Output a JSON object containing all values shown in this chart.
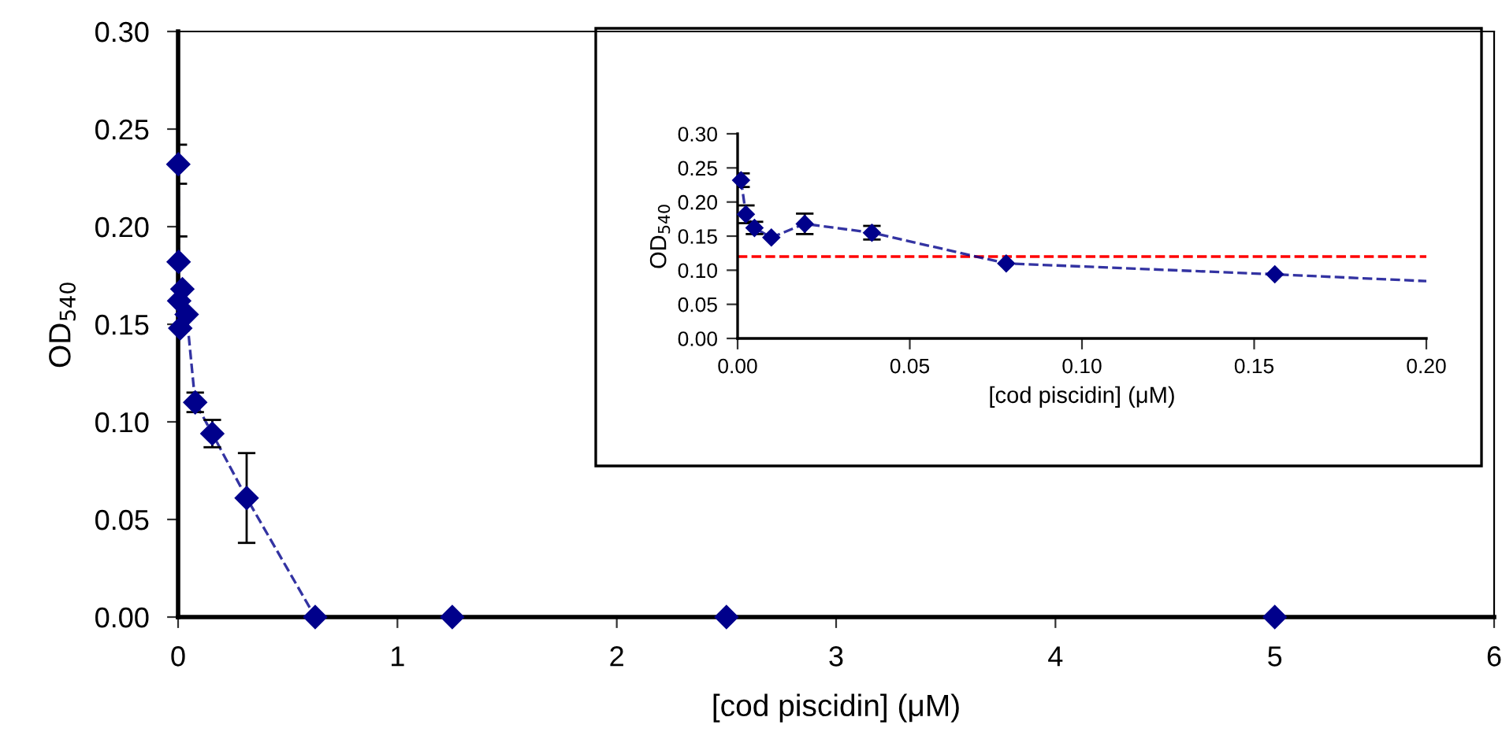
{
  "chart_data": [
    {
      "type": "line",
      "xlabel": "[cod piscidin] (μM)",
      "ylabel": "OD$_{540}$",
      "x": [
        0.001,
        0.0024,
        0.0049,
        0.0098,
        0.0195,
        0.039,
        0.078,
        0.156,
        0.3125,
        0.625,
        1.25,
        2.5,
        5
      ],
      "series": [
        {
          "color": "#00008b",
          "values": [
            0.232,
            0.182,
            0.162,
            0.148,
            0.168,
            0.155,
            0.11,
            0.094,
            0.061,
            0,
            0,
            0,
            0
          ],
          "errors": [
            0.01,
            0.013,
            null,
            null,
            null,
            null,
            0.005,
            0.007,
            0.023,
            null,
            null,
            null,
            null
          ]
        }
      ],
      "marker": "diamond",
      "line_style": "dashed",
      "xlim": [
        0,
        6
      ],
      "xticks": [
        0,
        1,
        2,
        3,
        4,
        5,
        6
      ],
      "ylim": [
        0,
        0.3
      ],
      "yticks": [
        {
          "value": 0,
          "label": "0.00"
        },
        {
          "value": 0.05,
          "label": "0.05"
        },
        {
          "value": 0.1,
          "label": "0.10"
        },
        {
          "value": 0.15,
          "label": "0.15"
        },
        {
          "value": 0.2,
          "label": "0.20"
        },
        {
          "value": 0.25,
          "label": "0.25"
        },
        {
          "value": 0.3,
          "label": "0.30"
        }
      ],
      "grid": false
    },
    {
      "type": "line",
      "xlabel": "[cod piscidin] (μM)",
      "ylabel": "OD$_{540}$",
      "x": [
        0.001,
        0.0024,
        0.0049,
        0.0098,
        0.0195,
        0.039,
        0.078,
        0.156,
        0.2
      ],
      "series": [
        {
          "color": "#00008b",
          "values": [
            0.232,
            0.182,
            0.162,
            0.148,
            0.168,
            0.155,
            0.11,
            0.094,
            0.084
          ],
          "errors": [
            0.01,
            0.013,
            0.009,
            null,
            0.015,
            0.01,
            null,
            null,
            null
          ]
        }
      ],
      "marker": "diamond",
      "line_style": "dashed",
      "xlim": [
        0,
        0.2
      ],
      "xticks": [
        {
          "value": 0,
          "label": "0.00"
        },
        {
          "value": 0.05,
          "label": "0.05"
        },
        {
          "value": 0.1,
          "label": "0.10"
        },
        {
          "value": 0.15,
          "label": "0.15"
        },
        {
          "value": 0.2,
          "label": "0.20"
        }
      ],
      "ylim": [
        0,
        0.3
      ],
      "yticks": [
        {
          "value": 0,
          "label": "0.00"
        },
        {
          "value": 0.05,
          "label": "0.05"
        },
        {
          "value": 0.1,
          "label": "0.10"
        },
        {
          "value": 0.15,
          "label": "0.15"
        },
        {
          "value": 0.2,
          "label": "0.20"
        },
        {
          "value": 0.25,
          "label": "0.25"
        },
        {
          "value": 0.3,
          "label": "0.30"
        }
      ],
      "ref_lines": [
        {
          "axis": "y",
          "value": 0.12,
          "label": null,
          "color": "#ff0000",
          "line_style": "dashed"
        }
      ],
      "grid": false
    }
  ]
}
